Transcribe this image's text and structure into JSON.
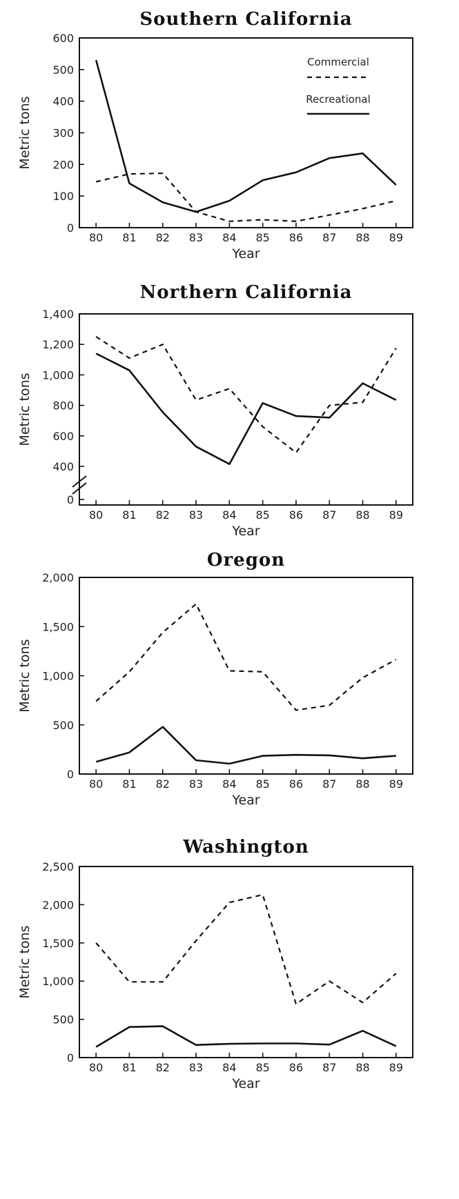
{
  "chart_data": [
    {
      "type": "line",
      "title": "Southern California",
      "xlabel": "Year",
      "ylabel": "Metric tons",
      "x": [
        "80",
        "81",
        "82",
        "83",
        "84",
        "85",
        "86",
        "87",
        "88",
        "89"
      ],
      "ylim": [
        0,
        600
      ],
      "yticks": [
        0,
        100,
        200,
        300,
        400,
        500,
        600
      ],
      "ytick_labels": [
        "0",
        "100",
        "200",
        "300",
        "400",
        "500",
        "600"
      ],
      "legend": {
        "position": "top-right",
        "entries": [
          "Commercial",
          "Recreational"
        ]
      },
      "series": [
        {
          "name": "Commercial",
          "style": "dashed",
          "values": [
            145,
            170,
            172,
            50,
            20,
            25,
            20,
            40,
            60,
            85
          ]
        },
        {
          "name": "Recreational",
          "style": "solid",
          "values": [
            530,
            140,
            80,
            50,
            85,
            150,
            175,
            220,
            235,
            135
          ]
        }
      ]
    },
    {
      "type": "line",
      "title": "Northern California",
      "xlabel": "Year",
      "ylabel": "Metric tons",
      "x": [
        "80",
        "81",
        "82",
        "83",
        "84",
        "85",
        "86",
        "87",
        "88",
        "89"
      ],
      "ylim": [
        0,
        1400
      ],
      "axis_break": true,
      "yticks": [
        0,
        400,
        600,
        800,
        1000,
        1200,
        1400
      ],
      "ytick_labels": [
        "0",
        "400",
        "600",
        "800",
        "1,000",
        "1,200",
        "1,400"
      ],
      "series": [
        {
          "name": "Commercial",
          "style": "dashed",
          "values": [
            1250,
            1110,
            1200,
            835,
            910,
            660,
            490,
            800,
            820,
            1175
          ]
        },
        {
          "name": "Recreational",
          "style": "solid",
          "values": [
            1140,
            1030,
            755,
            530,
            415,
            815,
            730,
            720,
            945,
            835
          ]
        }
      ]
    },
    {
      "type": "line",
      "title": "Oregon",
      "xlabel": "Year",
      "ylabel": "Metric tons",
      "x": [
        "80",
        "81",
        "82",
        "83",
        "84",
        "85",
        "86",
        "87",
        "88",
        "89"
      ],
      "ylim": [
        0,
        2000
      ],
      "yticks": [
        0,
        500,
        1000,
        1500,
        2000
      ],
      "ytick_labels": [
        "0",
        "500",
        "1,000",
        "1,500",
        "2,000"
      ],
      "series": [
        {
          "name": "Commercial",
          "style": "dashed",
          "values": [
            740,
            1040,
            1440,
            1730,
            1050,
            1040,
            650,
            700,
            980,
            1165
          ]
        },
        {
          "name": "Recreational",
          "style": "solid",
          "values": [
            125,
            220,
            480,
            140,
            105,
            185,
            195,
            190,
            160,
            185
          ]
        }
      ]
    },
    {
      "type": "line",
      "title": "Washington",
      "xlabel": "Year",
      "ylabel": "Metric tons",
      "x": [
        "80",
        "81",
        "82",
        "83",
        "84",
        "85",
        "86",
        "87",
        "88",
        "89"
      ],
      "ylim": [
        0,
        2500
      ],
      "yticks": [
        0,
        500,
        1000,
        1500,
        2000,
        2500
      ],
      "ytick_labels": [
        "0",
        "500",
        "1,000",
        "1,500",
        "2,000",
        "2,500"
      ],
      "series": [
        {
          "name": "Commercial",
          "style": "dashed",
          "values": [
            1500,
            990,
            990,
            1530,
            2030,
            2130,
            700,
            1000,
            720,
            1100
          ]
        },
        {
          "name": "Recreational",
          "style": "solid",
          "values": [
            140,
            400,
            410,
            165,
            180,
            185,
            185,
            170,
            350,
            150
          ]
        }
      ]
    }
  ]
}
